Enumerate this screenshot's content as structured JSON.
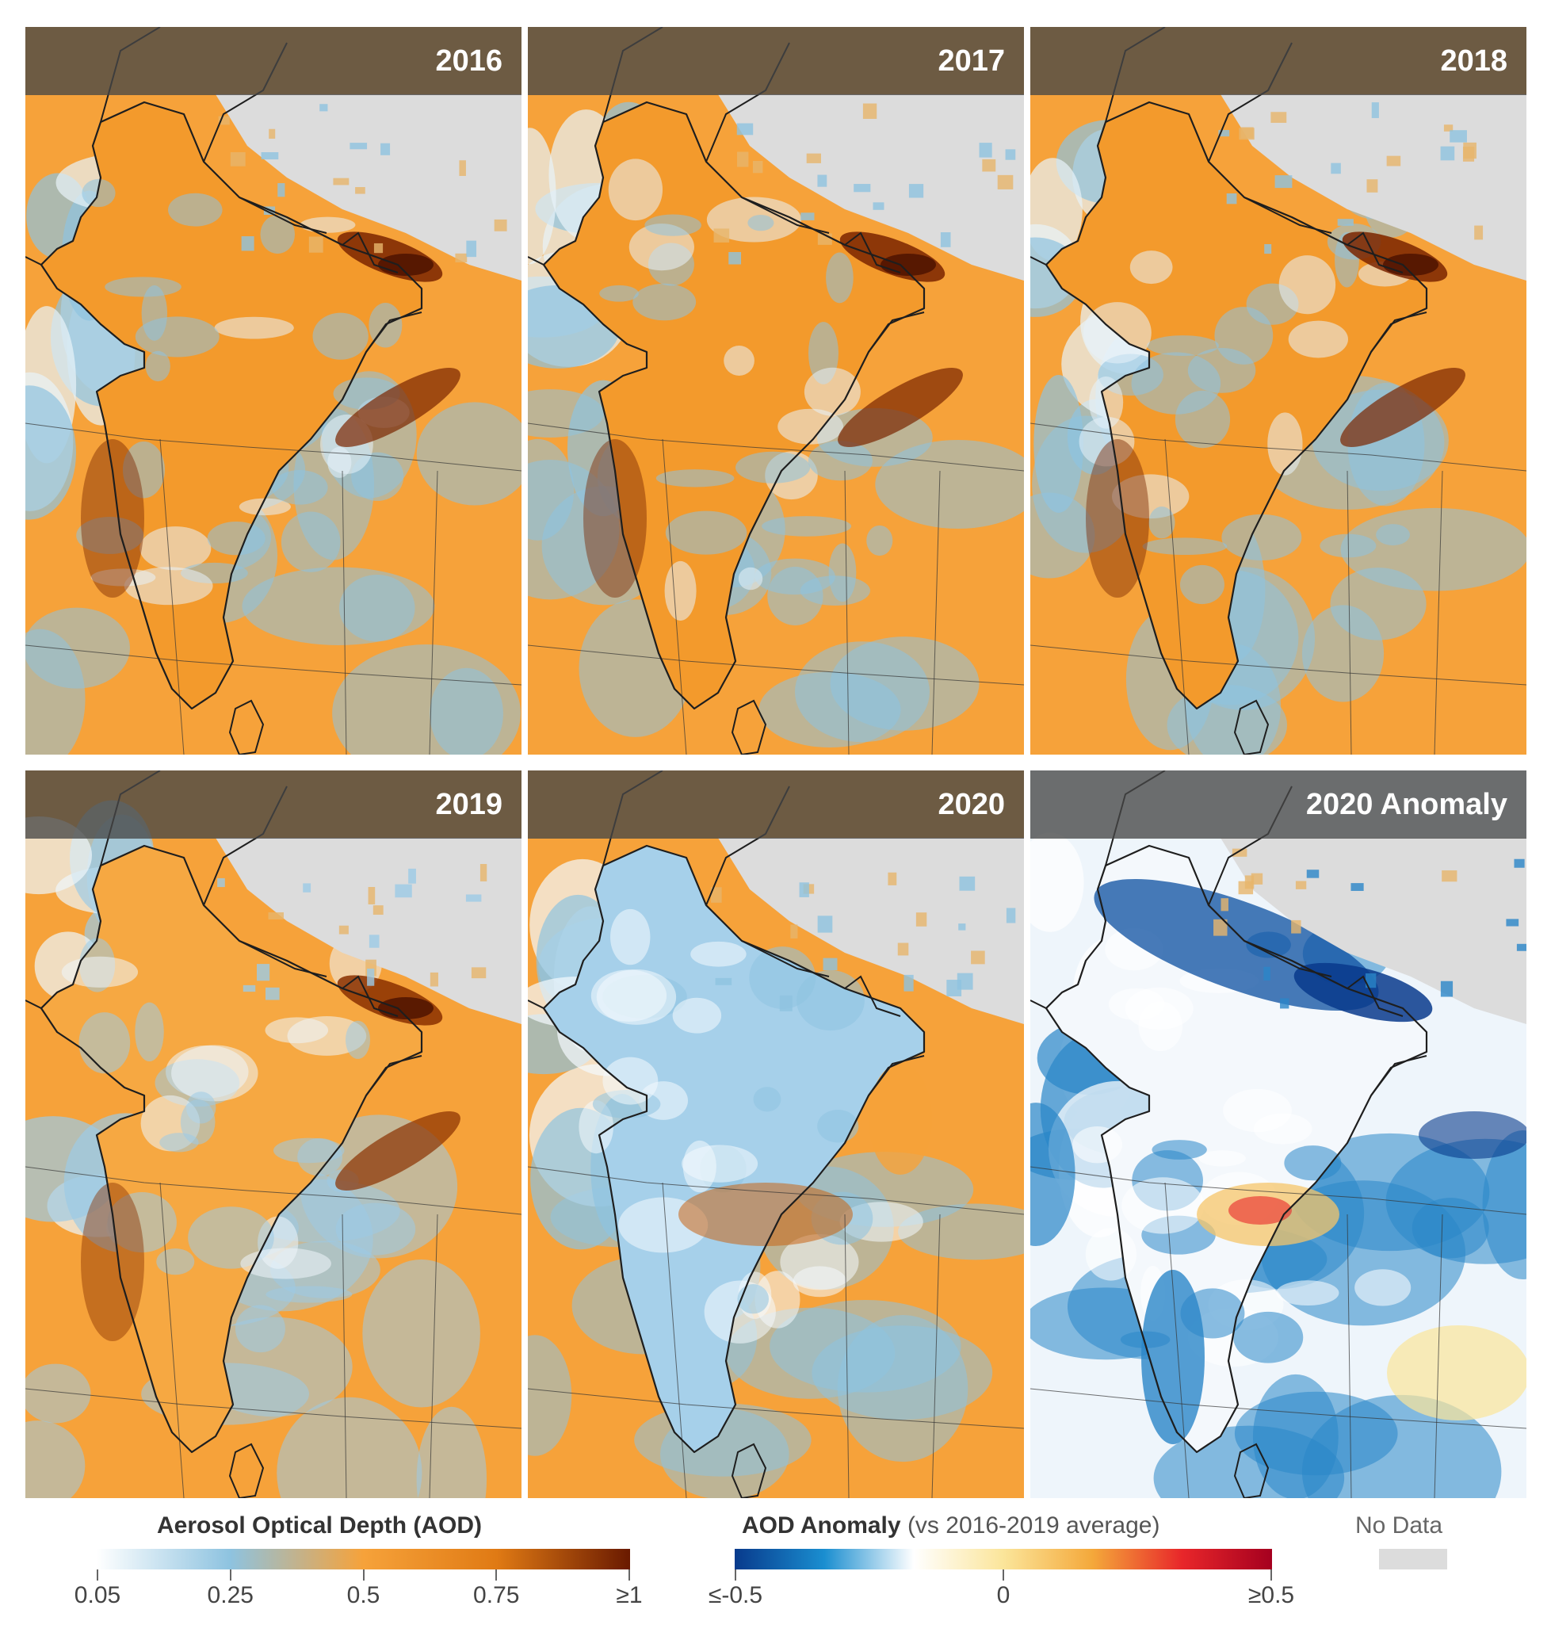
{
  "panels": [
    {
      "title": "2016",
      "type": "aod",
      "level": "high"
    },
    {
      "title": "2017",
      "type": "aod",
      "level": "high"
    },
    {
      "title": "2018",
      "type": "aod",
      "level": "high"
    },
    {
      "title": "2019",
      "type": "aod",
      "level": "medium"
    },
    {
      "title": "2020",
      "type": "aod",
      "level": "low"
    },
    {
      "title": "2020 Anomaly",
      "type": "anomaly",
      "level": "negative"
    }
  ],
  "legend": {
    "aod": {
      "title": "Aerosol Optical Depth (AOD)",
      "ticks": [
        "0.05",
        "0.25",
        "0.5",
        "0.75",
        "≥1"
      ],
      "colors": [
        "#ffffff",
        "#8ec3e0",
        "#f6a23a",
        "#e07a14",
        "#6a1a00"
      ]
    },
    "anomaly": {
      "title": "AOD Anomaly",
      "subtitle": "(vs 2016-2019 average)",
      "ticks": [
        "≤-0.5",
        "0",
        "≥0.5"
      ],
      "colors": [
        "#083a8c",
        "#1a8ed0",
        "#ffffff",
        "#fbe59a",
        "#f4a83a",
        "#e8262a",
        "#a5001f"
      ]
    },
    "nodata": {
      "label": "No Data",
      "color": "#dcdcdc"
    }
  }
}
